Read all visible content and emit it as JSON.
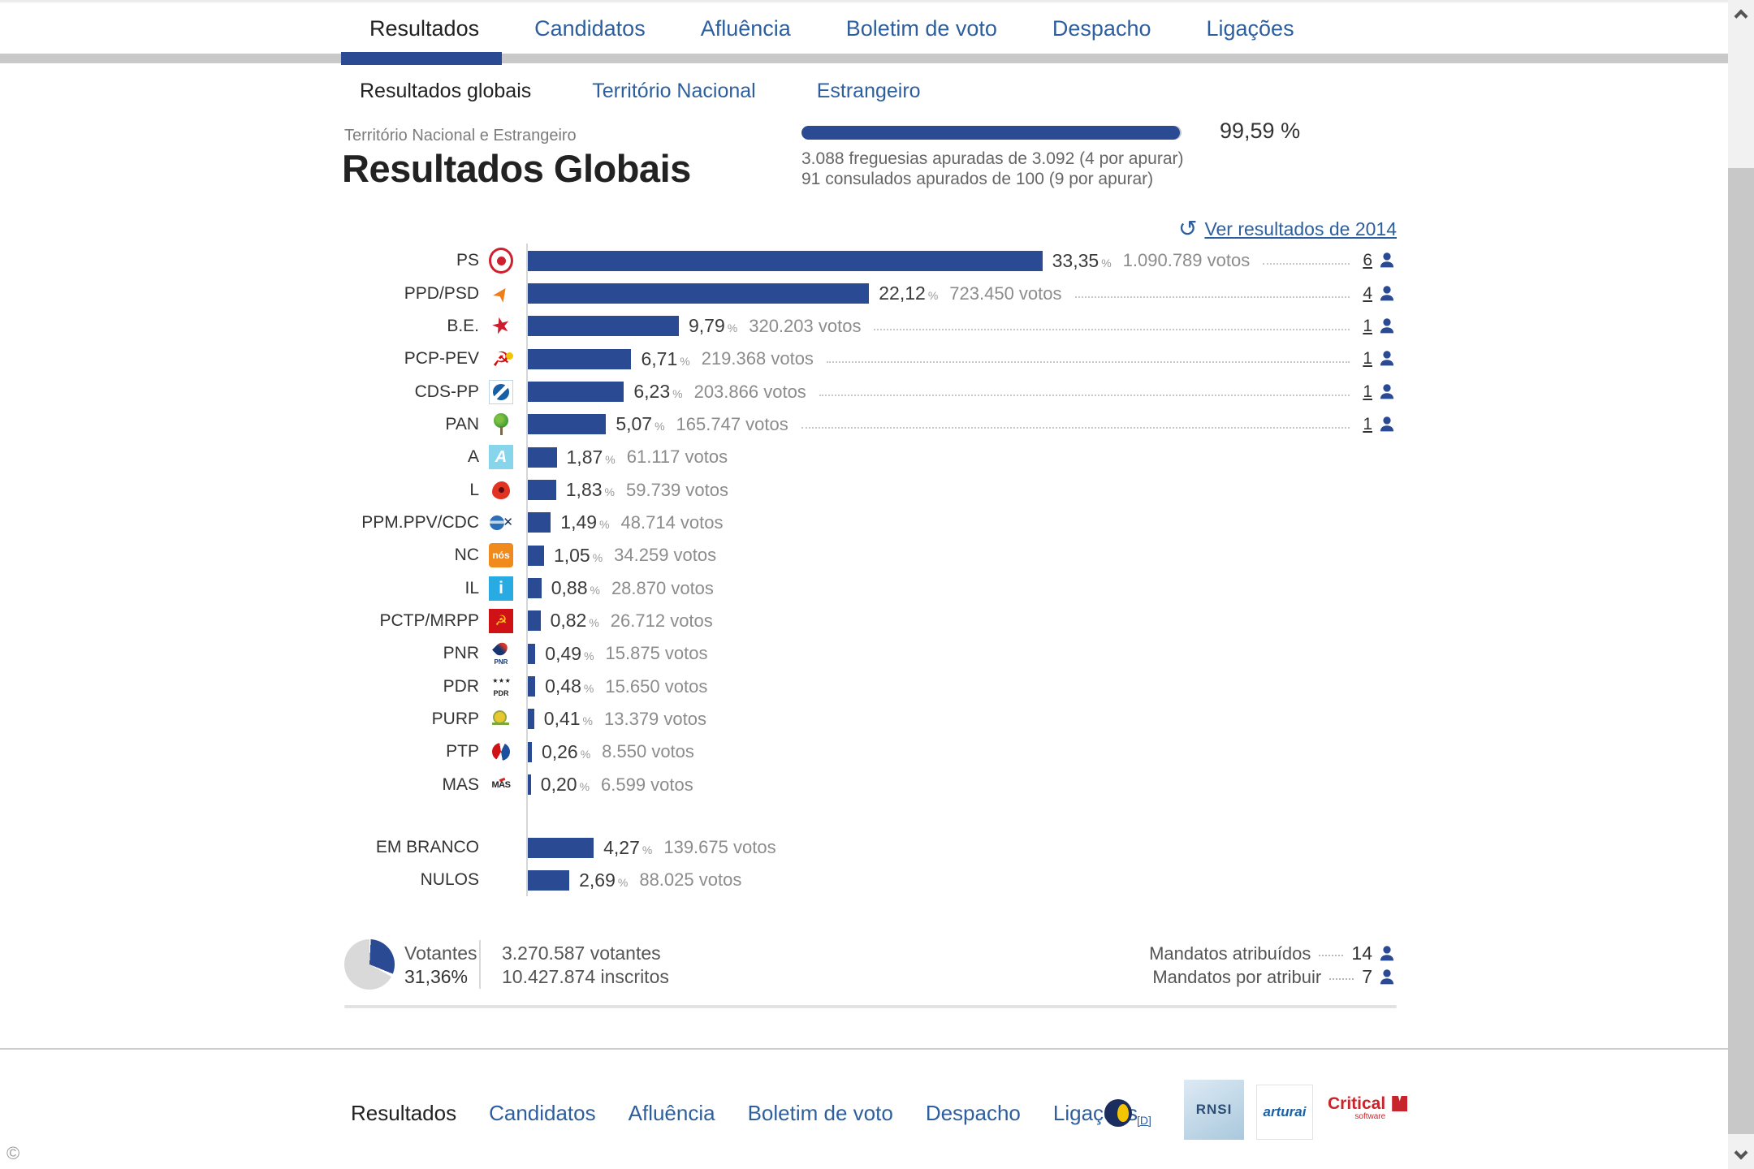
{
  "colors": {
    "accent_blue": "#2a4a94",
    "link_blue": "#2d5f9e",
    "bar_blue": "#2a4a94"
  },
  "nav": {
    "tabs": [
      {
        "label": "Resultados",
        "active": true
      },
      {
        "label": "Candidatos",
        "active": false
      },
      {
        "label": "Afluência",
        "active": false
      },
      {
        "label": "Boletim de voto",
        "active": false
      },
      {
        "label": "Despacho",
        "active": false
      },
      {
        "label": "Ligações",
        "active": false
      }
    ]
  },
  "subnav": {
    "tabs": [
      {
        "label": "Resultados globais",
        "active": true
      },
      {
        "label": "Território Nacional",
        "active": false
      },
      {
        "label": "Estrangeiro",
        "active": false
      }
    ]
  },
  "header": {
    "region": "Território Nacional e Estrangeiro",
    "title": "Resultados Globais"
  },
  "apuramento": {
    "percent": 99.59,
    "percent_label": "99,59 %",
    "line1": "3.088 freguesias apuradas de 3.092 (4 por apurar)",
    "line2": "91 consulados apurados de 100 (9 por apurar)"
  },
  "history_link": {
    "label": "Ver resultados de 2014",
    "icon": "history-clock-icon"
  },
  "chart_data": {
    "type": "bar",
    "orientation": "horizontal",
    "title": "Resultados Globais",
    "xlim": [
      0,
      35
    ],
    "unit": "%",
    "value_suffix": "votos",
    "series": [
      {
        "party": "PS",
        "icon": "ps-party-logo",
        "percent": 33.35,
        "percent_label": "33,35",
        "votes": 1090789,
        "votes_label": "1.090.789 votos",
        "mandates": 6
      },
      {
        "party": "PPD/PSD",
        "icon": "psd-party-logo",
        "percent": 22.12,
        "percent_label": "22,12",
        "votes": 723450,
        "votes_label": "723.450 votos",
        "mandates": 4
      },
      {
        "party": "B.E.",
        "icon": "be-party-logo",
        "percent": 9.79,
        "percent_label": "9,79",
        "votes": 320203,
        "votes_label": "320.203 votos",
        "mandates": 1
      },
      {
        "party": "PCP-PEV",
        "icon": "pcp-party-logo",
        "percent": 6.71,
        "percent_label": "6,71",
        "votes": 219368,
        "votes_label": "219.368 votos",
        "mandates": 1
      },
      {
        "party": "CDS-PP",
        "icon": "cds-party-logo",
        "percent": 6.23,
        "percent_label": "6,23",
        "votes": 203866,
        "votes_label": "203.866 votos",
        "mandates": 1
      },
      {
        "party": "PAN",
        "icon": "pan-party-logo",
        "percent": 5.07,
        "percent_label": "5,07",
        "votes": 165747,
        "votes_label": "165.747 votos",
        "mandates": 1
      },
      {
        "party": "A",
        "icon": "a-party-logo",
        "percent": 1.87,
        "percent_label": "1,87",
        "votes": 61117,
        "votes_label": "61.117 votos",
        "mandates": null
      },
      {
        "party": "L",
        "icon": "l-party-logo",
        "percent": 1.83,
        "percent_label": "1,83",
        "votes": 59739,
        "votes_label": "59.739 votos",
        "mandates": null
      },
      {
        "party": "PPM.PPV/CDC",
        "icon": "ppm-party-logo",
        "percent": 1.49,
        "percent_label": "1,49",
        "votes": 48714,
        "votes_label": "48.714 votos",
        "mandates": null
      },
      {
        "party": "NC",
        "icon": "nc-party-logo",
        "percent": 1.05,
        "percent_label": "1,05",
        "votes": 34259,
        "votes_label": "34.259 votos",
        "mandates": null
      },
      {
        "party": "IL",
        "icon": "il-party-logo",
        "percent": 0.88,
        "percent_label": "0,88",
        "votes": 28870,
        "votes_label": "28.870 votos",
        "mandates": null
      },
      {
        "party": "PCTP/MRPP",
        "icon": "pctp-party-logo",
        "percent": 0.82,
        "percent_label": "0,82",
        "votes": 26712,
        "votes_label": "26.712 votos",
        "mandates": null
      },
      {
        "party": "PNR",
        "icon": "pnr-party-logo",
        "percent": 0.49,
        "percent_label": "0,49",
        "votes": 15875,
        "votes_label": "15.875 votos",
        "mandates": null
      },
      {
        "party": "PDR",
        "icon": "pdr-party-logo",
        "percent": 0.48,
        "percent_label": "0,48",
        "votes": 15650,
        "votes_label": "15.650 votos",
        "mandates": null
      },
      {
        "party": "PURP",
        "icon": "purp-party-logo",
        "percent": 0.41,
        "percent_label": "0,41",
        "votes": 13379,
        "votes_label": "13.379 votos",
        "mandates": null
      },
      {
        "party": "PTP",
        "icon": "ptp-party-logo",
        "percent": 0.26,
        "percent_label": "0,26",
        "votes": 8550,
        "votes_label": "8.550 votos",
        "mandates": null
      },
      {
        "party": "MAS",
        "icon": "mas-party-logo",
        "percent": 0.2,
        "percent_label": "0,20",
        "votes": 6599,
        "votes_label": "6.599 votos",
        "mandates": null
      }
    ],
    "blank_null": [
      {
        "party": "EM BRANCO",
        "icon": null,
        "percent": 4.27,
        "percent_label": "4,27",
        "votes": 139675,
        "votes_label": "139.675 votos",
        "mandates": null
      },
      {
        "party": "NULOS",
        "icon": null,
        "percent": 2.69,
        "percent_label": "2,69",
        "votes": 88025,
        "votes_label": "88.025 votos",
        "mandates": null
      }
    ]
  },
  "summary": {
    "votantes_label": "Votantes",
    "votantes_percent": "31,36%",
    "votantes_count": "3.270.587 votantes",
    "inscritos_count": "10.427.874 inscritos",
    "mandatos_atribuidos_label": "Mandatos atribuídos",
    "mandatos_atribuidos": "14",
    "mandatos_por_atribuir_label": "Mandatos por atribuir",
    "mandatos_por_atribuir": "7"
  },
  "footer": {
    "links": [
      {
        "label": "Resultados",
        "active": true
      },
      {
        "label": "Candidatos",
        "active": false
      },
      {
        "label": "Afluência",
        "active": false
      },
      {
        "label": "Boletim de voto",
        "active": false
      },
      {
        "label": "Despacho",
        "active": false
      },
      {
        "label": "Ligações",
        "active": false
      }
    ],
    "accessibility_link": "[D]",
    "logos": [
      {
        "name": "dgai-logo",
        "text": ""
      },
      {
        "name": "rnsi-logo",
        "text": "RNSI"
      },
      {
        "name": "arturai-logo",
        "text": "arturai"
      },
      {
        "name": "critical-software-logo",
        "text": "Critical",
        "subtext": "software"
      }
    ]
  },
  "misc": {
    "copyright": "©"
  }
}
